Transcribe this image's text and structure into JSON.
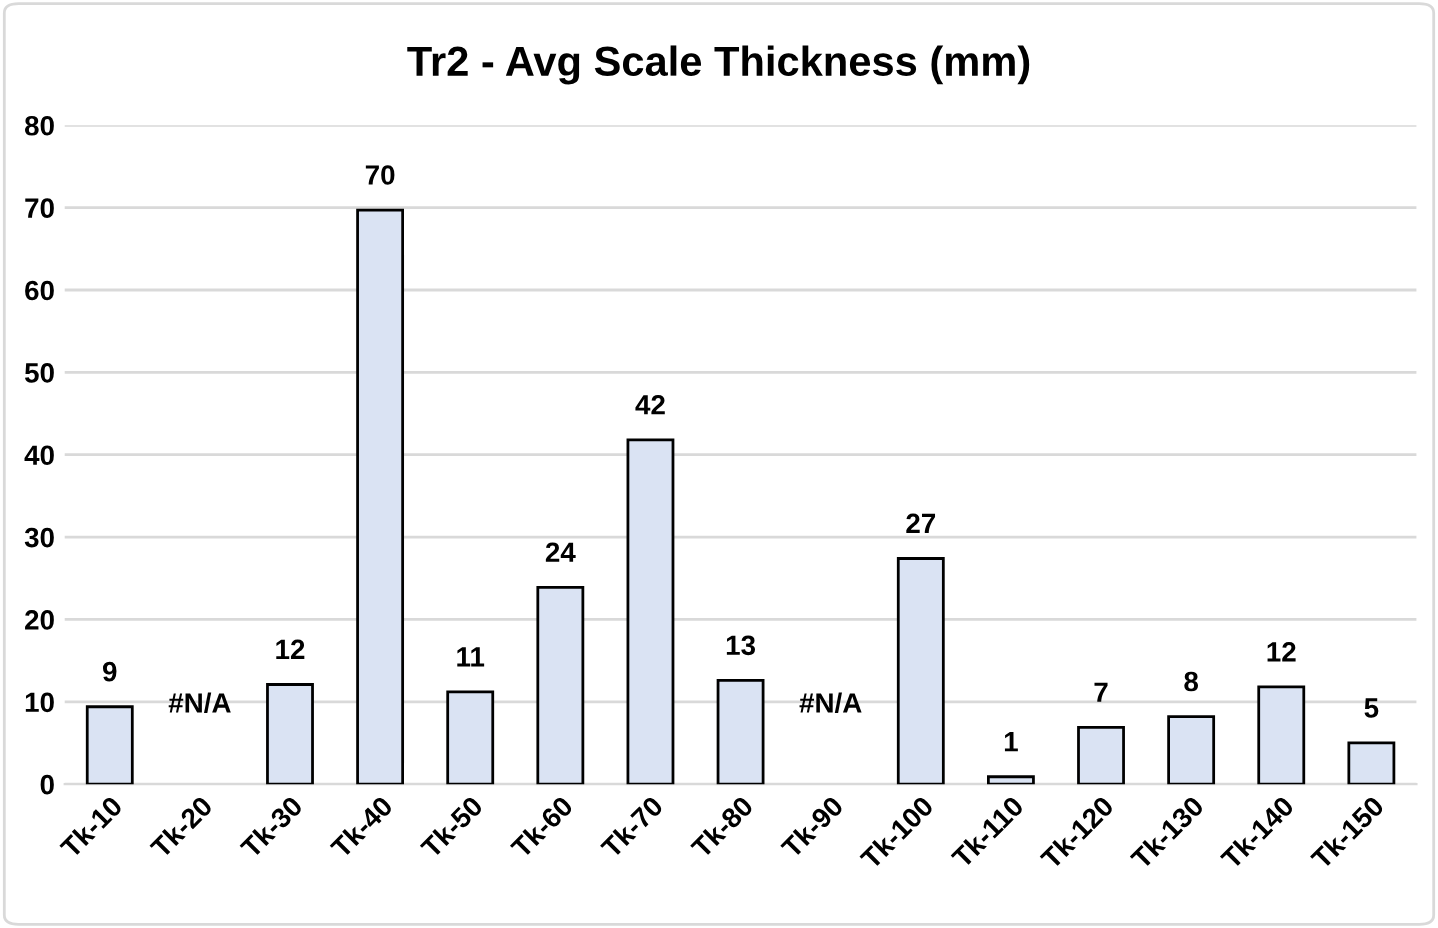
{
  "chart_data": {
    "type": "bar",
    "title": "Tr2 - Avg Scale Thickness (mm)",
    "categories": [
      "Tk-10",
      "Tk-20",
      "Tk-30",
      "Tk-40",
      "Tk-50",
      "Tk-60",
      "Tk-70",
      "Tk-80",
      "Tk-90",
      "Tk-100",
      "Tk-110",
      "Tk-120",
      "Tk-130",
      "Tk-140",
      "Tk-150"
    ],
    "values": [
      9.4,
      null,
      12.1,
      69.7,
      11.2,
      23.9,
      41.8,
      12.6,
      null,
      27.4,
      0.9,
      6.9,
      8.2,
      11.8,
      5.0
    ],
    "value_labels": [
      "9",
      "#N/A",
      "12",
      "70",
      "11",
      "24",
      "42",
      "13",
      "#N/A",
      "27",
      "1",
      "7",
      "8",
      "12",
      "5"
    ],
    "color": "#dae3f3",
    "ylim": [
      0,
      80
    ],
    "yticks": [
      0,
      10,
      20,
      30,
      40,
      50,
      60,
      70,
      80
    ],
    "grid": "y"
  }
}
